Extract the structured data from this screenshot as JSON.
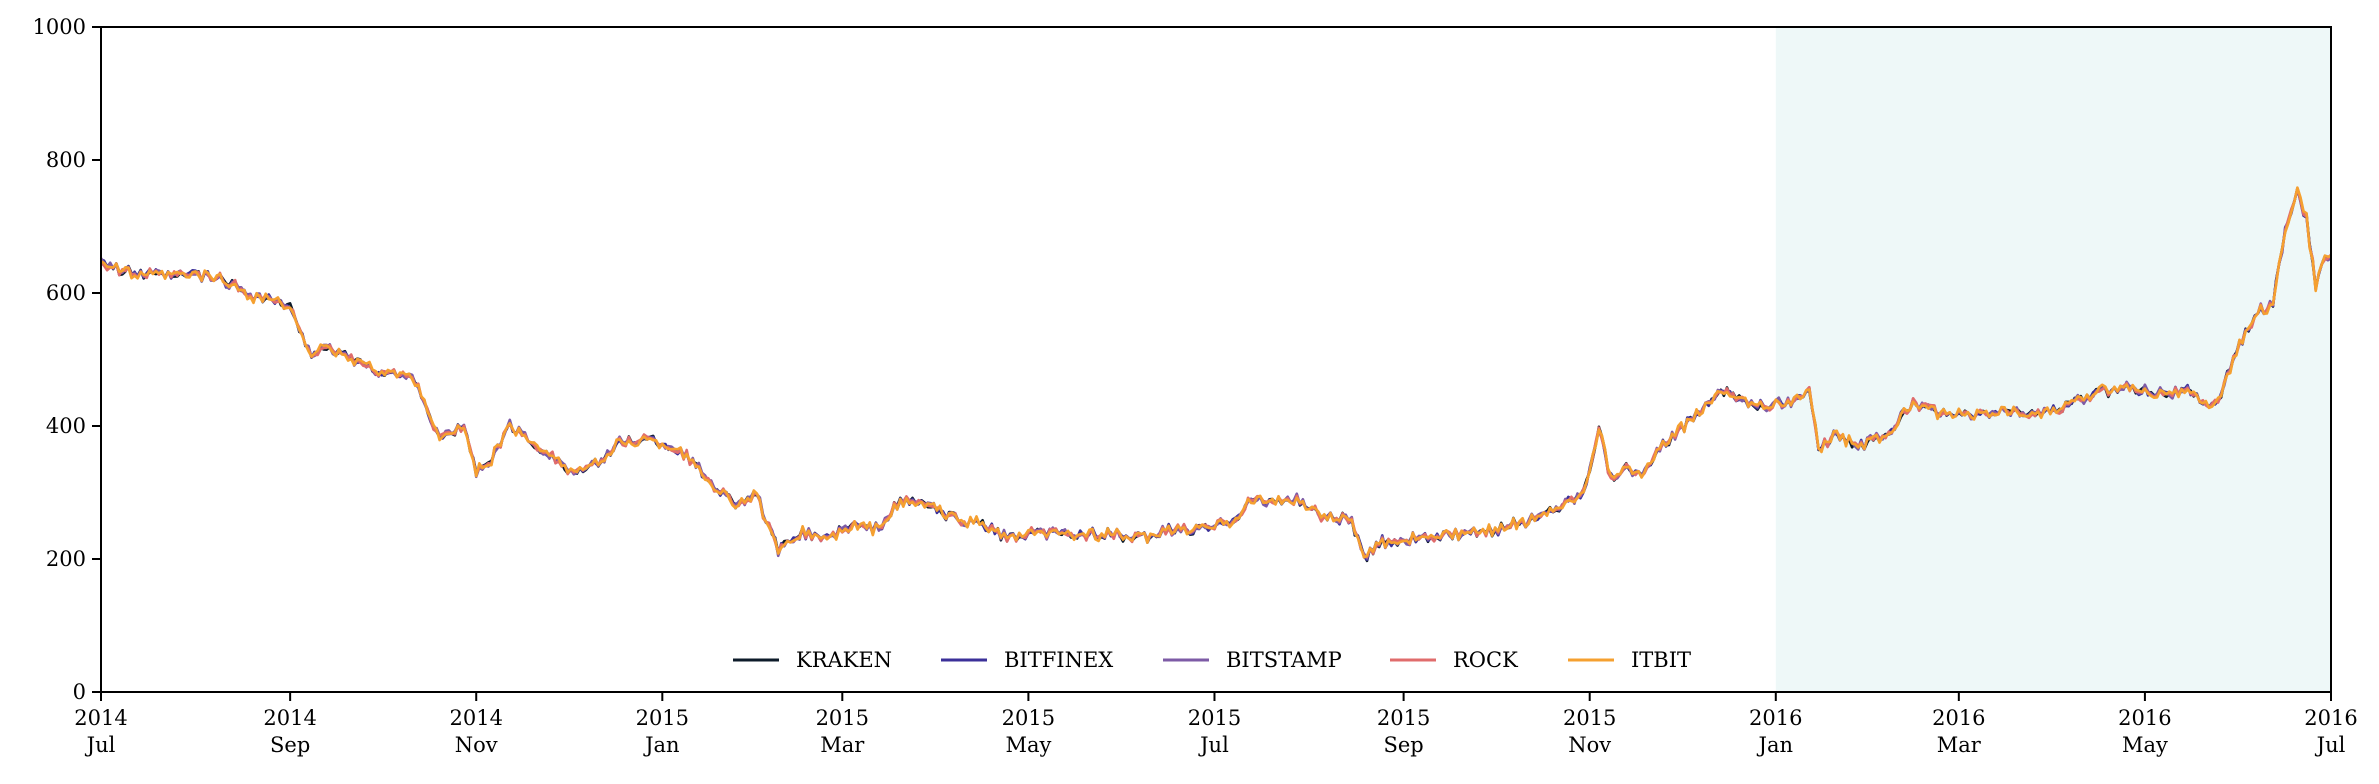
{
  "chart_data": {
    "type": "line",
    "title": "",
    "xlabel": "",
    "ylabel": "",
    "xlim": [
      "2014-07-01",
      "2016-07-01"
    ],
    "ylim": [
      0,
      1000
    ],
    "grid": false,
    "legend_position": "bottom-center",
    "highlight_region": {
      "start": "2016-01-01",
      "end": "2016-07-01",
      "color": "#eef8f8"
    },
    "x_ticks": [
      {
        "date": "2014-07-01",
        "line1": "2014",
        "line2": "Jul"
      },
      {
        "date": "2014-09-01",
        "line1": "2014",
        "line2": "Sep"
      },
      {
        "date": "2014-11-01",
        "line1": "2014",
        "line2": "Nov"
      },
      {
        "date": "2015-01-01",
        "line1": "2015",
        "line2": "Jan"
      },
      {
        "date": "2015-03-01",
        "line1": "2015",
        "line2": "Mar"
      },
      {
        "date": "2015-05-01",
        "line1": "2015",
        "line2": "May"
      },
      {
        "date": "2015-07-01",
        "line1": "2015",
        "line2": "Jul"
      },
      {
        "date": "2015-09-01",
        "line1": "2015",
        "line2": "Sep"
      },
      {
        "date": "2015-11-01",
        "line1": "2015",
        "line2": "Nov"
      },
      {
        "date": "2016-01-01",
        "line1": "2016",
        "line2": "Jan"
      },
      {
        "date": "2016-03-01",
        "line1": "2016",
        "line2": "Mar"
      },
      {
        "date": "2016-05-01",
        "line1": "2016",
        "line2": "May"
      },
      {
        "date": "2016-07-01",
        "line1": "2016",
        "line2": "Jul"
      }
    ],
    "y_ticks": [
      0,
      200,
      400,
      600,
      800,
      1000
    ],
    "base_series": {
      "x": [
        "2014-07-01",
        "2014-07-08",
        "2014-07-20",
        "2014-08-01",
        "2014-08-10",
        "2014-08-20",
        "2014-08-25",
        "2014-08-28",
        "2014-09-01",
        "2014-09-08",
        "2014-09-15",
        "2014-09-22",
        "2014-09-28",
        "2014-10-04",
        "2014-10-12",
        "2014-10-20",
        "2014-10-28",
        "2014-11-01",
        "2014-11-06",
        "2014-11-12",
        "2014-11-18",
        "2014-11-25",
        "2014-12-02",
        "2014-12-10",
        "2014-12-18",
        "2014-12-25",
        "2015-01-01",
        "2015-01-08",
        "2015-01-14",
        "2015-01-18",
        "2015-01-25",
        "2015-02-01",
        "2015-02-08",
        "2015-02-15",
        "2015-02-25",
        "2015-03-05",
        "2015-03-12",
        "2015-03-20",
        "2015-03-28",
        "2015-04-05",
        "2015-04-15",
        "2015-04-25",
        "2015-05-05",
        "2015-05-15",
        "2015-05-25",
        "2015-06-05",
        "2015-06-15",
        "2015-06-25",
        "2015-07-01",
        "2015-07-08",
        "2015-07-12",
        "2015-07-20",
        "2015-07-28",
        "2015-08-05",
        "2015-08-15",
        "2015-08-19",
        "2015-08-25",
        "2015-09-05",
        "2015-09-15",
        "2015-09-25",
        "2015-10-05",
        "2015-10-15",
        "2015-10-25",
        "2015-10-30",
        "2015-11-04",
        "2015-11-08",
        "2015-11-12",
        "2015-11-18",
        "2015-11-25",
        "2015-12-02",
        "2015-12-10",
        "2015-12-15",
        "2015-12-20",
        "2015-12-25",
        "2016-01-01",
        "2016-01-08",
        "2016-01-12",
        "2016-01-15",
        "2016-01-20",
        "2016-01-28",
        "2016-02-05",
        "2016-02-15",
        "2016-02-25",
        "2016-03-05",
        "2016-03-15",
        "2016-03-25",
        "2016-04-05",
        "2016-04-15",
        "2016-04-25",
        "2016-05-05",
        "2016-05-15",
        "2016-05-20",
        "2016-05-25",
        "2016-06-01",
        "2016-06-08",
        "2016-06-12",
        "2016-06-16",
        "2016-06-20",
        "2016-06-23",
        "2016-06-26",
        "2016-06-29",
        "2016-07-01"
      ],
      "y": [
        650,
        632,
        625,
        628,
        620,
        595,
        592,
        585,
        575,
        510,
        515,
        500,
        485,
        480,
        470,
        380,
        400,
        330,
        350,
        400,
        380,
        360,
        330,
        340,
        375,
        380,
        375,
        360,
        330,
        310,
        285,
        295,
        210,
        240,
        232,
        250,
        245,
        285,
        285,
        262,
        255,
        230,
        240,
        236,
        238,
        230,
        242,
        245,
        248,
        262,
        288,
        285,
        290,
        265,
        258,
        200,
        225,
        232,
        234,
        238,
        250,
        262,
        288,
        300,
        400,
        320,
        340,
        325,
        370,
        400,
        440,
        455,
        445,
        430,
        432,
        440,
        450,
        365,
        388,
        372,
        382,
        432,
        418,
        415,
        423,
        418,
        428,
        450,
        460,
        452,
        452,
        432,
        440,
        522,
        575,
        580,
        695,
        760,
        710,
        610,
        655,
        650
      ]
    },
    "series": [
      {
        "name": "KRAKEN",
        "color": "#0d1b2a",
        "offset_seed": 1
      },
      {
        "name": "BITFINEX",
        "color": "#3b3099",
        "offset_seed": 2
      },
      {
        "name": "BITSTAMP",
        "color": "#7d5ba6",
        "offset_seed": 3
      },
      {
        "name": "ROCK",
        "color": "#e06c6c",
        "offset_seed": 4
      },
      {
        "name": "ITBIT",
        "color": "#f5a030",
        "offset_seed": 5
      }
    ]
  }
}
